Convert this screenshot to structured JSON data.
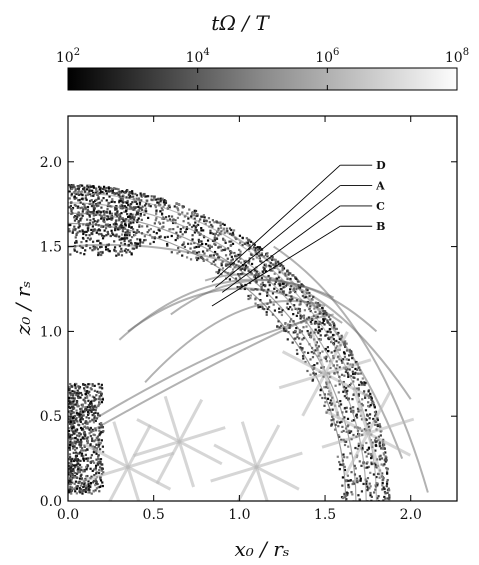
{
  "chart_data": {
    "type": "heatmap",
    "title": "",
    "xlabel": "x₀ / rₛ",
    "ylabel": "z₀ / rₛ",
    "xlim": [
      0.0,
      2.27
    ],
    "ylim": [
      0.0,
      2.27
    ],
    "grid": false,
    "x_ticks": [
      "0.0",
      "0.5",
      "1.0",
      "1.5",
      "2.0"
    ],
    "y_ticks": [
      "0.0",
      "0.5",
      "1.0",
      "1.5",
      "2.0"
    ],
    "colorbar": {
      "label": "tΩ / T",
      "scale": "log",
      "range": [
        100,
        100000000
      ],
      "colormap": "grayscale (dark = low, light = high)",
      "location": "top",
      "ticks": [
        {
          "base": "10",
          "exp": "2",
          "value": 100
        },
        {
          "base": "10",
          "exp": "4",
          "value": 10000
        },
        {
          "base": "10",
          "exp": "6",
          "value": 1000000
        },
        {
          "base": "10",
          "exp": "8",
          "value": 100000000
        }
      ]
    },
    "outer_boundary_radius": 1.87,
    "outer_boundary_x_intercept": 2.27,
    "annotations": [
      {
        "label": "D",
        "text_at": [
          1.6,
          1.98
        ],
        "points_to": [
          0.84,
          1.29
        ]
      },
      {
        "label": "A",
        "text_at": [
          1.6,
          1.86
        ],
        "points_to": [
          0.86,
          1.26
        ]
      },
      {
        "label": "C",
        "text_at": [
          1.6,
          1.74
        ],
        "points_to": [
          0.9,
          1.23
        ]
      },
      {
        "label": "B",
        "text_at": [
          1.6,
          1.62
        ],
        "points_to": [
          0.84,
          1.15
        ]
      }
    ]
  }
}
